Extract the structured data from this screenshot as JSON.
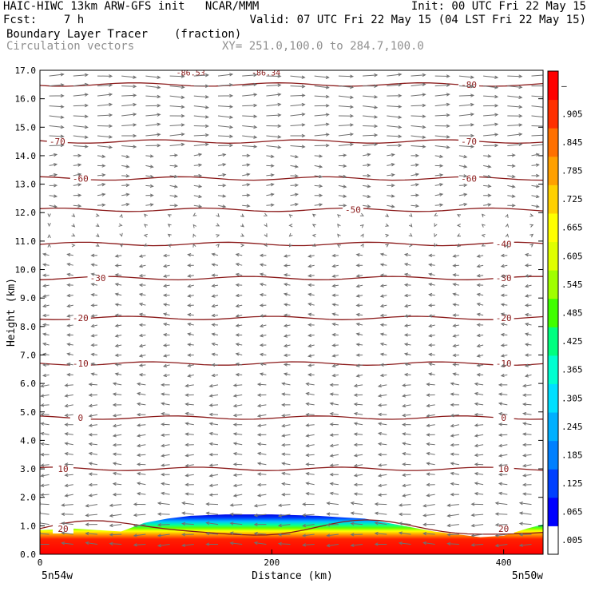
{
  "header": {
    "line1_left": "HAIC-HIWC 13km ARW-GFS init   NCAR/MMM",
    "line1_right": "Init: 00 UTC Fri 22 May 15",
    "line2_left": "Fcst:    7 h",
    "line2_right": "Valid: 07 UTC Fri 22 May 15 (04 LST Fri 22 May 15)",
    "field_name": "Boundary Layer Tracer",
    "field_units": "(fraction)",
    "overlay_name": "Circulation vectors",
    "cross_section": "XY= 251.0,100.0 to 284.7,100.0"
  },
  "chart_data": {
    "type": "heatmap",
    "xlabel": "Distance (km)",
    "ylabel": "Height (km)",
    "xlim": [
      0,
      434
    ],
    "ylim": [
      0,
      17
    ],
    "x_ticks": [
      0,
      200,
      400
    ],
    "y_ticks": [
      "0.0",
      "1.0",
      "2.0",
      "3.0",
      "4.0",
      "5.0",
      "6.0",
      "7.0",
      "8.0",
      "9.0",
      "10.0",
      "11.0",
      "12.0",
      "13.0",
      "14.0",
      "15.0",
      "16.0",
      "17.0"
    ],
    "left_endpoint_label": "5n54w",
    "right_endpoint_label": "5n50w",
    "colorbar_labels": [
      ".005",
      ".065",
      ".125",
      ".185",
      ".245",
      ".305",
      ".365",
      ".425",
      ".485",
      ".545",
      ".605",
      ".665",
      ".725",
      ".785",
      ".845",
      ".905",
      "–"
    ],
    "colorbar_colors": [
      "#ffffff",
      "#0000ff",
      "#0040ff",
      "#0080ff",
      "#00b0ff",
      "#00e0ff",
      "#00ffd0",
      "#00ff80",
      "#40ff00",
      "#a0ff00",
      "#e0ff00",
      "#ffff00",
      "#ffd000",
      "#ffa000",
      "#ff7000",
      "#ff3000",
      "#ff0000"
    ],
    "tracer_top_km": [
      [
        0,
        0.85
      ],
      [
        30,
        0.9
      ],
      [
        50,
        0.85
      ],
      [
        70,
        0.8
      ],
      [
        90,
        1.1
      ],
      [
        110,
        1.25
      ],
      [
        130,
        1.35
      ],
      [
        160,
        1.4
      ],
      [
        200,
        1.4
      ],
      [
        240,
        1.35
      ],
      [
        260,
        1.3
      ],
      [
        280,
        1.25
      ],
      [
        300,
        1.1
      ],
      [
        320,
        0.95
      ],
      [
        340,
        0.8
      ],
      [
        360,
        0.7
      ],
      [
        380,
        0.6
      ],
      [
        400,
        0.65
      ],
      [
        420,
        0.9
      ],
      [
        434,
        1.05
      ]
    ],
    "isotherms": [
      {
        "label": "20",
        "height_km": 0.9,
        "label_x_km": [
          20,
          400
        ]
      },
      {
        "label": "10",
        "height_km": 3.0,
        "label_x_km": [
          20,
          400
        ]
      },
      {
        "label": "0",
        "height_km": 4.8,
        "label_x_km": [
          35,
          400
        ]
      },
      {
        "label": "-10",
        "height_km": 6.7,
        "label_x_km": [
          35,
          400
        ]
      },
      {
        "label": "-20",
        "height_km": 8.3,
        "label_x_km": [
          35,
          400
        ]
      },
      {
        "label": "-30",
        "height_km": 9.7,
        "label_x_km": [
          50,
          400
        ]
      },
      {
        "label": "-40",
        "height_km": 10.9,
        "label_x_km": [
          400
        ]
      },
      {
        "label": "-50",
        "height_km": 12.1,
        "label_x_km": [
          270
        ]
      },
      {
        "label": "-60",
        "height_km": 13.2,
        "label_x_km": [
          35,
          370
        ]
      },
      {
        "label": "-70",
        "height_km": 14.5,
        "label_x_km": [
          15,
          370
        ]
      },
      {
        "label": "-80",
        "height_km": 16.5,
        "label_x_km": [
          370
        ]
      }
    ],
    "extra_contour_labels": [
      "-86.53",
      "-86.34"
    ]
  }
}
